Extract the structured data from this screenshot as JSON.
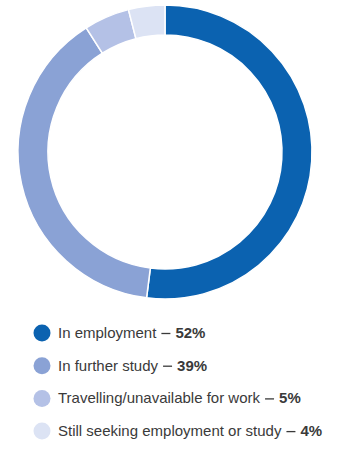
{
  "chart_data": {
    "type": "donut",
    "categories": [
      "In employment",
      "In further study",
      "Travelling/unavailable for work",
      "Still seeking employment or study"
    ],
    "values": [
      52,
      39,
      5,
      4
    ],
    "value_labels": [
      "52%",
      "39%",
      "5%",
      "4%"
    ],
    "colors": [
      "#0b62b0",
      "#8aa2d5",
      "#b4c1e6",
      "#dce3f4"
    ],
    "legend": "bottom"
  }
}
